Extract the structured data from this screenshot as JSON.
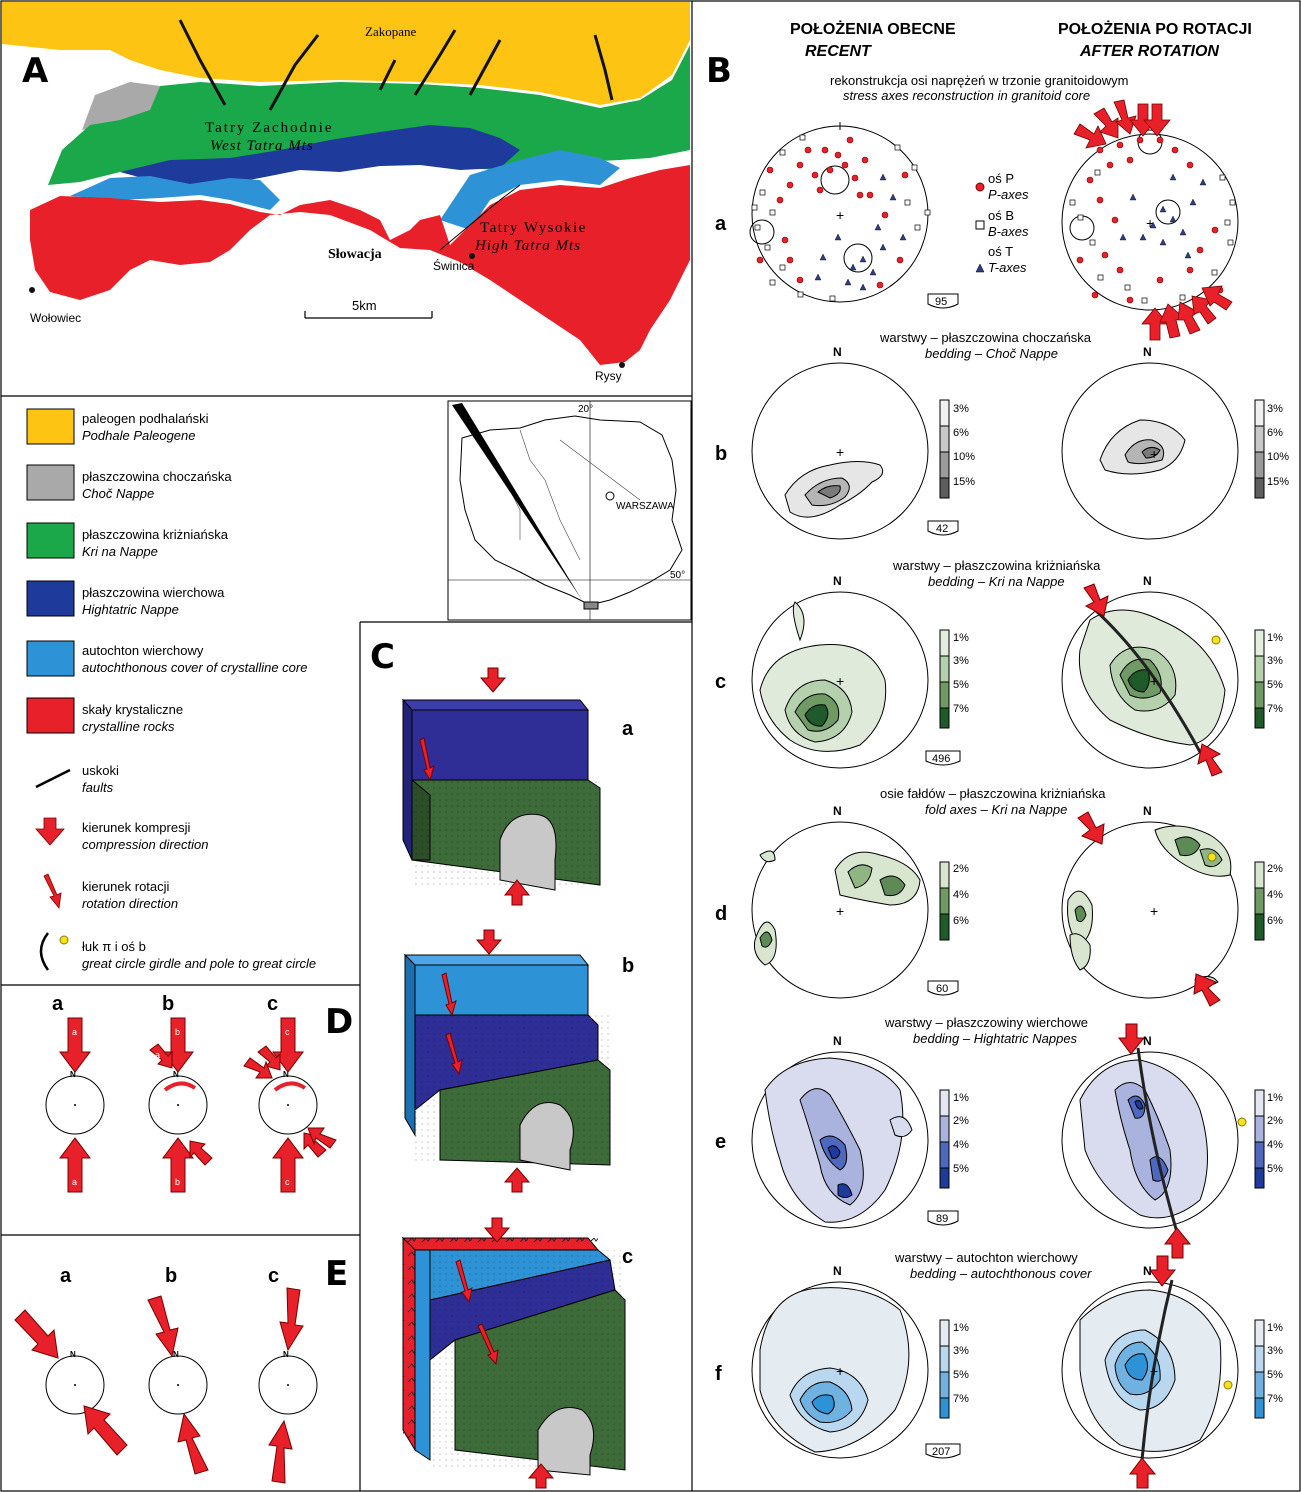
{
  "panelA": {
    "letter": "A",
    "places": {
      "zakopane": "Zakopane",
      "west_pl": "Tatry Zachodnie",
      "west_en": "West Tatra Mts",
      "high_pl": "Tatry Wysokie",
      "high_en": "High Tatra Mts",
      "slovakia": "Słowacja",
      "swinica": "Świnica",
      "wolowiec": "Wołowiec",
      "rysy": "Rysy"
    },
    "scale": "5km",
    "colors": {
      "paleogene": "#FDC414",
      "choc": "#A9A9A9",
      "krizna": "#1BA84A",
      "hightatric": "#1E3A9A",
      "autochthon": "#2E93D6",
      "crystalline": "#E8202A"
    }
  },
  "legend": [
    {
      "pl": "paleogen podhalański",
      "en": "Podhale Paleogene",
      "color": "#FDC414"
    },
    {
      "pl": "płaszczowina choczańska",
      "en": "Choč Nappe",
      "color": "#A9A9A9"
    },
    {
      "pl": "płaszczowina kriżniańska",
      "en": "Kri na Nappe",
      "color": "#1BA84A"
    },
    {
      "pl": "płaszczowina wierchowa",
      "en": "Hightatric Nappe",
      "color": "#1E3A9A"
    },
    {
      "pl": "autochton wierchowy",
      "en": "autochthonous cover of crystalline core",
      "color": "#2E93D6"
    },
    {
      "pl": "skały krystaliczne",
      "en": "crystalline rocks",
      "color": "#E8202A"
    }
  ],
  "legendSymbols": {
    "faults_pl": "uskoki",
    "faults_en": "faults",
    "comp_pl": "kierunek kompresji",
    "comp_en": "compression direction",
    "rot_pl": "kierunek rotacji",
    "rot_en": "rotation direction",
    "arc_pl": "łuk π i oś  b",
    "arc_en": "great circle girdle and pole to great circle"
  },
  "inset": {
    "warsaw": "WARSZAWA",
    "lon": "20°",
    "lat": "50°"
  },
  "panelB": {
    "letter": "B",
    "col1_pl": "POŁOŻENIA OBECNE",
    "col1_en": "RECENT",
    "col2_pl": "POŁOŻENIA PO ROTACJI",
    "col2_en": "AFTER ROTATION",
    "rows": [
      {
        "id": "a",
        "title_pl": "rekonstrukcja osi naprężeń w trzonie granitoidowym",
        "title_en": "stress axes reconstruction in granitoid core",
        "n": "95",
        "scale": []
      },
      {
        "id": "b",
        "title_pl": "warstwy – płaszczowina choczańska",
        "title_en": "bedding – Choč Nappe",
        "n": "42",
        "scale": [
          "3%",
          "6%",
          "10%",
          "15%"
        ]
      },
      {
        "id": "c",
        "title_pl": "warstwy – płaszczowina kriżniańska",
        "title_en": "bedding – Kri na Nappe",
        "n": "496",
        "scale": [
          "1%",
          "3%",
          "5%",
          "7%"
        ]
      },
      {
        "id": "d",
        "title_pl": "osie fałdów – płaszczowina kriżniańska",
        "title_en": "fold axes – Kri na Nappe",
        "n": "60",
        "scale": [
          "2%",
          "4%",
          "6%"
        ]
      },
      {
        "id": "e",
        "title_pl": "warstwy – płaszczowiny wierchowe",
        "title_en": "bedding – Hightatric Nappes",
        "n": "89",
        "scale": [
          "1%",
          "2%",
          "4%",
          "5%"
        ]
      },
      {
        "id": "f",
        "title_pl": "warstwy – autochton wierchowy",
        "title_en": "bedding – autochthonous cover",
        "n": "207",
        "scale": [
          "1%",
          "3%",
          "5%",
          "7%"
        ]
      }
    ],
    "axesLegend": {
      "p_pl": "oś P",
      "p_en": "P-axes",
      "b_pl": "oś B",
      "b_en": "B-axes",
      "t_pl": "oś T",
      "t_en": "T-axes"
    },
    "north": "N"
  },
  "panelC": {
    "letter": "C",
    "sub": [
      "a",
      "b",
      "c"
    ]
  },
  "panelD": {
    "letter": "D",
    "sub": [
      "a",
      "b",
      "c"
    ],
    "arrowLabels": [
      "a",
      "b",
      "c"
    ],
    "north": "N"
  },
  "panelE": {
    "letter": "E",
    "sub": [
      "a",
      "b",
      "c"
    ],
    "north": "N"
  }
}
